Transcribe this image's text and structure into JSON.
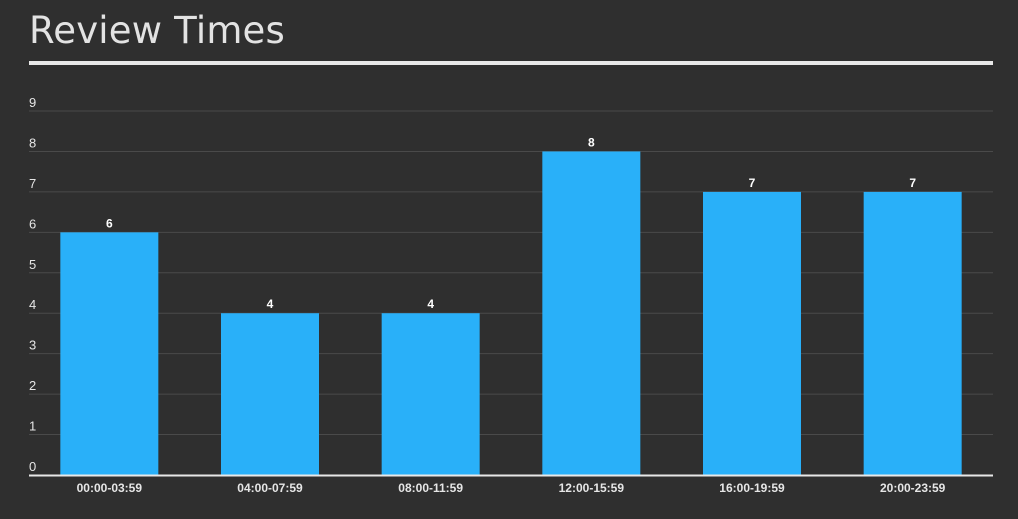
{
  "chart_data": {
    "type": "bar",
    "title": "Review Times",
    "categories": [
      "00:00-03:59",
      "04:00-07:59",
      "08:00-11:59",
      "12:00-15:59",
      "16:00-19:59",
      "20:00-23:59"
    ],
    "values": [
      6,
      4,
      4,
      8,
      7,
      7
    ],
    "yticks": [
      "0",
      "1",
      "2",
      "3",
      "4",
      "5",
      "6",
      "7",
      "8",
      "9"
    ],
    "ylim": [
      0,
      9
    ],
    "grid": true,
    "data_labels": [
      "6",
      "4",
      "4",
      "8",
      "7",
      "7"
    ],
    "colors": {
      "bar": "#29b0f9",
      "background": "#2f2f2f",
      "grid": "#4a4a4a",
      "axis": "#e8e8e8",
      "text": "#e6e6e6"
    }
  }
}
